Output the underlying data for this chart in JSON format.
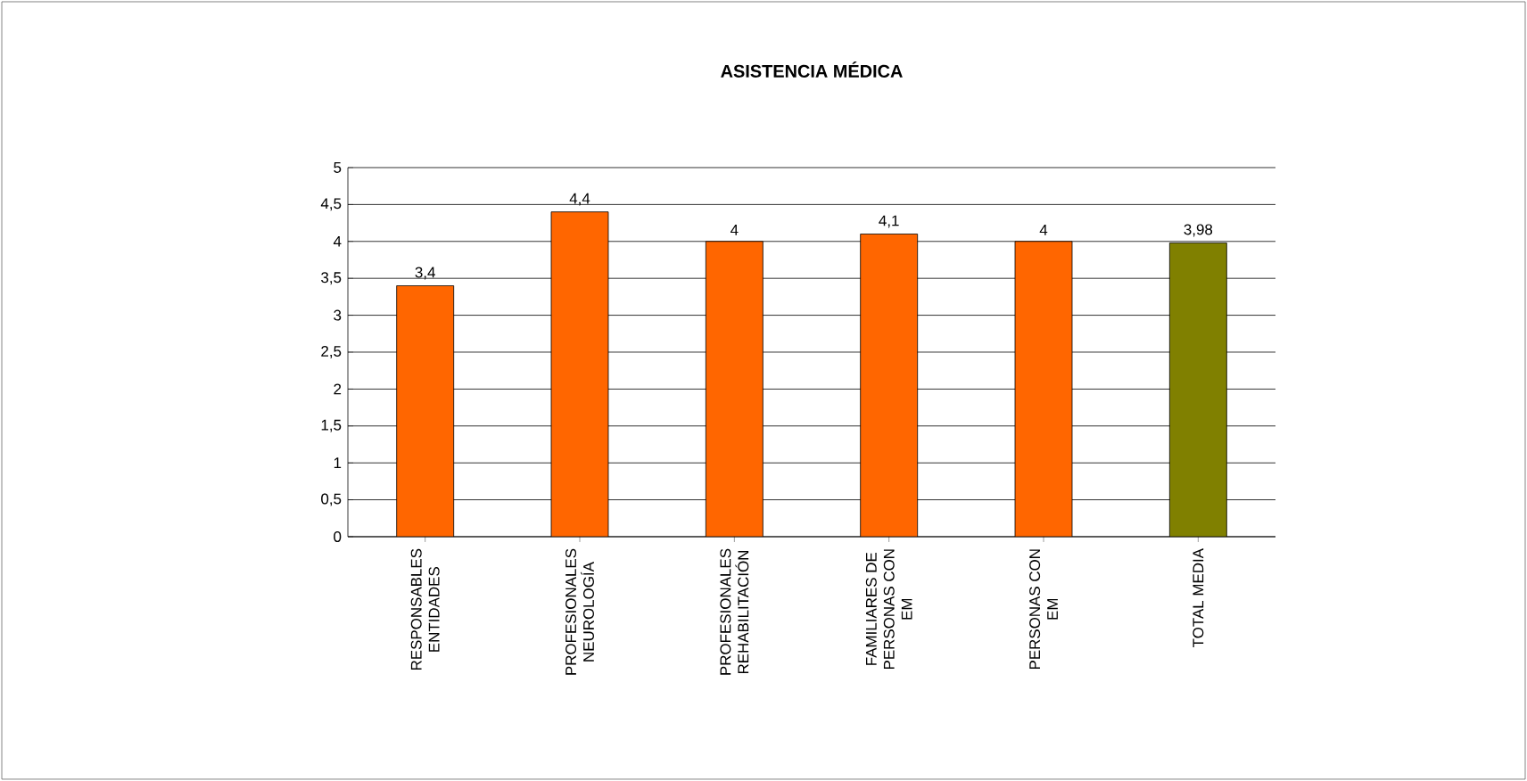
{
  "chart_data": {
    "type": "bar",
    "title": "ASISTENCIA MÉDICA",
    "categories": [
      "RESPONSABLES ENTIDADES",
      "PROFESIONALES NEUROLOGÍA",
      "PROFESIONALES REHABILITACIÓN",
      "FAMILIARES DE PERSONAS CON EM",
      "PERSONAS CON EM",
      "TOTAL MEDIA"
    ],
    "values": [
      3.4,
      4.4,
      4,
      4.1,
      4,
      3.98
    ],
    "value_labels": [
      "3,4",
      "4,4",
      "4",
      "4,1",
      "4",
      "3,98"
    ],
    "colors": [
      "#ff6600",
      "#ff6600",
      "#ff6600",
      "#ff6600",
      "#ff6600",
      "#808000"
    ],
    "ylim": [
      0,
      5
    ],
    "yticks": [
      0,
      {
        "value": 0.5,
        "label": "0,5"
      },
      1,
      {
        "value": 1.5,
        "label": "1,5"
      },
      2,
      {
        "value": 2.5,
        "label": "2,5"
      },
      3,
      {
        "value": 3.5,
        "label": "3,5"
      },
      4,
      {
        "value": 4.5,
        "label": "4,5"
      },
      5
    ],
    "grid": "y"
  }
}
